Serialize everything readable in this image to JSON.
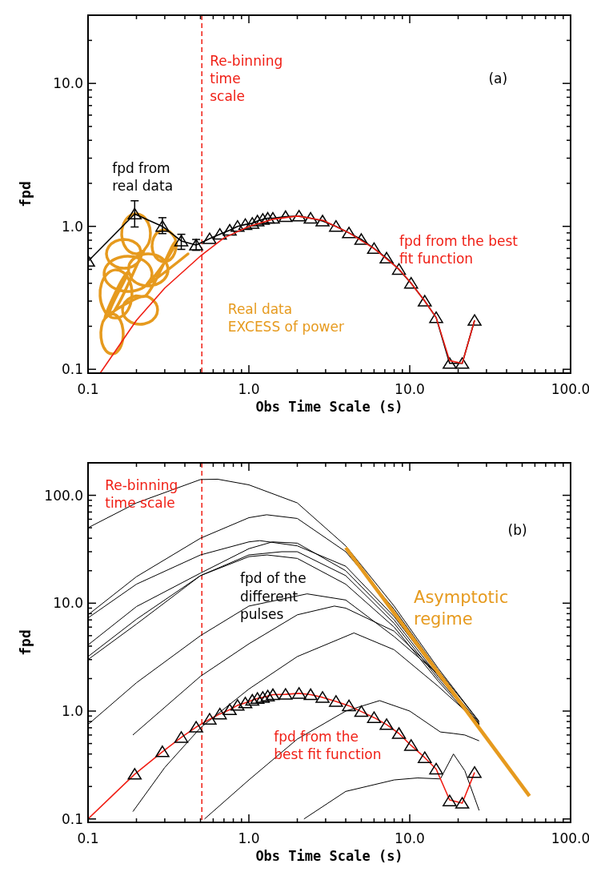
{
  "chart_data": [
    {
      "type": "line",
      "xlabel": "Obs Time Scale (s)",
      "ylabel": "fpd",
      "log": "xy",
      "grid": false,
      "xlim": [
        0.1,
        100
      ],
      "ylim": [
        0.094,
        30
      ],
      "xticks": [
        0.1,
        {
          "value": 0.2,
          "label": null
        },
        {
          "value": 0.3,
          "label": null
        },
        {
          "value": 0.4,
          "label": null
        },
        {
          "value": 0.5,
          "label": null
        },
        {
          "value": 0.6,
          "label": null
        },
        {
          "value": 0.7,
          "label": null
        },
        {
          "value": 0.8,
          "label": null
        },
        {
          "value": 0.9,
          "label": null
        },
        {
          "value": 1,
          "label": "1.0"
        },
        {
          "value": 2,
          "label": null
        },
        {
          "value": 3,
          "label": null
        },
        {
          "value": 4,
          "label": null
        },
        {
          "value": 5,
          "label": null
        },
        {
          "value": 6,
          "label": null
        },
        {
          "value": 7,
          "label": null
        },
        {
          "value": 8,
          "label": null
        },
        {
          "value": 9,
          "label": null
        },
        {
          "value": 10,
          "label": "10.0"
        },
        {
          "value": 20,
          "label": null
        },
        {
          "value": 30,
          "label": null
        },
        {
          "value": 40,
          "label": null
        },
        {
          "value": 50,
          "label": null
        },
        {
          "value": 60,
          "label": null
        },
        {
          "value": 70,
          "label": null
        },
        {
          "value": 80,
          "label": null
        },
        {
          "value": 90,
          "label": null
        },
        {
          "value": 100,
          "label": "100.0"
        }
      ],
      "yticks": [
        0.1,
        {
          "value": 0.2,
          "label": null
        },
        {
          "value": 0.3,
          "label": null
        },
        {
          "value": 0.4,
          "label": null
        },
        {
          "value": 0.5,
          "label": null
        },
        {
          "value": 0.6,
          "label": null
        },
        {
          "value": 0.7,
          "label": null
        },
        {
          "value": 0.8,
          "label": null
        },
        {
          "value": 0.9,
          "label": null
        },
        {
          "value": 1,
          "label": "1.0"
        },
        {
          "value": 2,
          "label": null
        },
        {
          "value": 3,
          "label": null
        },
        {
          "value": 4,
          "label": null
        },
        {
          "value": 5,
          "label": null
        },
        {
          "value": 6,
          "label": null
        },
        {
          "value": 7,
          "label": null
        },
        {
          "value": 8,
          "label": null
        },
        {
          "value": 9,
          "label": null
        },
        {
          "value": 10,
          "label": "10.0"
        },
        {
          "value": 20,
          "label": null
        }
      ],
      "ref_lines": [
        {
          "axis": "x",
          "value": 0.51,
          "label": "Re-binning\ntime\nscale",
          "color": "#f01e14",
          "line_style": "dashed"
        }
      ],
      "annotations": [
        "(a)",
        "fpd from\nreal data",
        "fpd from the best\nfit function",
        "Real data\nEXCESS of power"
      ],
      "series": [
        {
          "color": "#000000",
          "marker": "none",
          "x": [
            0.1,
            0.195,
            0.29,
            0.38,
            0.47,
            0.57,
            0.66,
            0.76,
            0.85,
            0.95,
            1.05,
            1.13,
            1.22,
            1.31,
            1.41,
            1.69,
            2.05,
            2.42,
            2.87,
            3.48,
            4.19,
            5.0,
            6.0,
            7.18,
            8.57,
            10.2,
            12.4,
            14.6,
            17.7,
            21.2,
            25.3
          ],
          "values": [
            0.57,
            1.22,
            1.0,
            0.79,
            0.74,
            0.82,
            0.88,
            0.94,
            1.0,
            1.03,
            1.05,
            1.09,
            1.12,
            1.14,
            1.14,
            1.17,
            1.18,
            1.14,
            1.09,
            1.0,
            0.9,
            0.81,
            0.7,
            0.6,
            0.5,
            0.4,
            0.3,
            0.23,
            0.11,
            0.11,
            0.22
          ]
        },
        {
          "type": "scatter",
          "color": "#000000",
          "marker": "triangle",
          "x": [
            0.1,
            0.195,
            0.29,
            0.38,
            0.47,
            0.57,
            0.66,
            0.76,
            0.85,
            0.95,
            1.05,
            1.13,
            1.22,
            1.31,
            1.41,
            1.69,
            2.05,
            2.42,
            2.87,
            3.48,
            4.19,
            5.0,
            6.0,
            7.18,
            8.57,
            10.2,
            12.4,
            14.6,
            17.7,
            21.2,
            25.3
          ],
          "values": [
            0.57,
            1.22,
            1.0,
            0.79,
            0.74,
            0.82,
            0.88,
            0.94,
            1.0,
            1.03,
            1.05,
            1.09,
            1.12,
            1.14,
            1.14,
            1.17,
            1.18,
            1.14,
            1.09,
            1.0,
            0.9,
            0.81,
            0.7,
            0.6,
            0.5,
            0.4,
            0.3,
            0.23,
            0.11,
            0.11,
            0.22
          ],
          "errors": [
            null,
            [
              0.99,
              1.51
            ],
            [
              0.89,
              1.15
            ],
            [
              0.69,
              0.88
            ],
            [
              0.68,
              0.81
            ],
            null,
            null,
            null,
            null,
            null,
            null,
            null,
            null,
            null,
            null,
            null,
            null,
            null,
            null,
            null,
            null,
            null,
            null,
            null,
            null,
            null,
            null,
            null,
            null,
            null,
            null
          ]
        },
        {
          "color": "#f01e14",
          "marker": "none",
          "x": [
            0.119,
            0.2,
            0.3,
            0.5,
            0.7,
            1.0,
            1.4,
            2.0,
            2.9,
            4.2,
            6.0,
            8.6,
            10.2,
            12.4,
            14.6,
            17.7,
            21.2,
            25.3
          ],
          "values": [
            0.094,
            0.22,
            0.37,
            0.62,
            0.83,
            1.0,
            1.12,
            1.18,
            1.1,
            0.9,
            0.7,
            0.5,
            0.4,
            0.3,
            0.23,
            0.115,
            0.11,
            0.22
          ]
        }
      ]
    },
    {
      "type": "line",
      "xlabel": "Obs Time Scale (s)",
      "ylabel": "fpd",
      "log": "xy",
      "grid": false,
      "xlim": [
        0.1,
        100
      ],
      "ylim": [
        0.093,
        200
      ],
      "xticks": [
        0.1,
        {
          "value": 0.2,
          "label": null
        },
        {
          "value": 0.3,
          "label": null
        },
        {
          "value": 0.4,
          "label": null
        },
        {
          "value": 0.5,
          "label": null
        },
        {
          "value": 0.6,
          "label": null
        },
        {
          "value": 0.7,
          "label": null
        },
        {
          "value": 0.8,
          "label": null
        },
        {
          "value": 0.9,
          "label": null
        },
        {
          "value": 1,
          "label": "1.0"
        },
        {
          "value": 2,
          "label": null
        },
        {
          "value": 3,
          "label": null
        },
        {
          "value": 4,
          "label": null
        },
        {
          "value": 5,
          "label": null
        },
        {
          "value": 6,
          "label": null
        },
        {
          "value": 7,
          "label": null
        },
        {
          "value": 8,
          "label": null
        },
        {
          "value": 9,
          "label": null
        },
        {
          "value": 10,
          "label": "10.0"
        },
        {
          "value": 20,
          "label": null
        },
        {
          "value": 30,
          "label": null
        },
        {
          "value": 40,
          "label": null
        },
        {
          "value": 50,
          "label": null
        },
        {
          "value": 60,
          "label": null
        },
        {
          "value": 70,
          "label": null
        },
        {
          "value": 80,
          "label": null
        },
        {
          "value": 90,
          "label": null
        },
        {
          "value": 100,
          "label": "100.0"
        }
      ],
      "yticks": [
        0.1,
        {
          "value": 0.2,
          "label": null
        },
        {
          "value": 0.3,
          "label": null
        },
        {
          "value": 0.4,
          "label": null
        },
        {
          "value": 0.5,
          "label": null
        },
        {
          "value": 0.6,
          "label": null
        },
        {
          "value": 0.7,
          "label": null
        },
        {
          "value": 0.8,
          "label": null
        },
        {
          "value": 0.9,
          "label": null
        },
        {
          "value": 1,
          "label": "1.0"
        },
        {
          "value": 2,
          "label": null
        },
        {
          "value": 3,
          "label": null
        },
        {
          "value": 4,
          "label": null
        },
        {
          "value": 5,
          "label": null
        },
        {
          "value": 6,
          "label": null
        },
        {
          "value": 7,
          "label": null
        },
        {
          "value": 8,
          "label": null
        },
        {
          "value": 9,
          "label": null
        },
        {
          "value": 10,
          "label": "10.0"
        },
        {
          "value": 20,
          "label": null
        },
        {
          "value": 30,
          "label": null
        },
        {
          "value": 40,
          "label": null
        },
        {
          "value": 50,
          "label": null
        },
        {
          "value": 60,
          "label": null
        },
        {
          "value": 70,
          "label": null
        },
        {
          "value": 80,
          "label": null
        },
        {
          "value": 90,
          "label": null
        },
        {
          "value": 100,
          "label": "100.0"
        },
        {
          "value": 200,
          "label": null
        }
      ],
      "ref_lines": [
        {
          "axis": "x",
          "value": 0.51,
          "label": "Re-binning\ntime scale",
          "color": "#f01e14",
          "line_style": "dashed"
        }
      ],
      "annotations": [
        "(b)",
        "fpd of the\ndifferent\npulses",
        "Asymptotic\nregime",
        "fpd from the\nbest fit function"
      ],
      "series": [
        {
          "color": "#000000",
          "marker": "none",
          "x": [
            0.1,
            0.2,
            0.5,
            0.64,
            1,
            2,
            4,
            8,
            15,
            27
          ],
          "values": [
            50,
            85,
            140,
            141,
            125,
            85,
            34,
            9.4,
            2.5,
            0.8
          ]
        },
        {
          "color": "#000000",
          "marker": "none",
          "x": [
            0.1,
            0.2,
            0.5,
            1,
            1.29,
            2,
            4,
            8,
            15,
            27
          ],
          "values": [
            7.8,
            17.6,
            40,
            62,
            66,
            61,
            30,
            8.8,
            2.4,
            0.8
          ]
        },
        {
          "color": "#000000",
          "marker": "none",
          "x": [
            0.1,
            0.2,
            0.5,
            1,
            1.17,
            2,
            4,
            8,
            15,
            27
          ],
          "values": [
            7.3,
            15,
            28,
            37,
            38,
            34,
            22,
            7.5,
            2.2,
            0.78
          ]
        },
        {
          "color": "#000000",
          "marker": "none",
          "x": [
            0.1,
            0.2,
            0.5,
            1,
            1.4,
            2,
            4,
            8,
            15,
            27
          ],
          "values": [
            4.1,
            9.3,
            19,
            32,
            37,
            36,
            20,
            7,
            2.1,
            0.76
          ]
        },
        {
          "color": "#000000",
          "marker": "none",
          "x": [
            0.1,
            0.2,
            0.5,
            1,
            1.6,
            2,
            4,
            8,
            15,
            27
          ],
          "values": [
            3.2,
            7.1,
            18,
            28,
            30,
            30,
            18,
            6.5,
            2.0,
            0.74
          ]
        },
        {
          "color": "#000000",
          "marker": "none",
          "x": [
            0.1,
            0.2,
            0.5,
            1,
            1.3,
            2,
            4,
            8,
            15,
            27
          ],
          "values": [
            3.0,
            6.4,
            18,
            27,
            28,
            26,
            15,
            6,
            1.9,
            0.72
          ]
        },
        {
          "color": "#000000",
          "marker": "none",
          "x": [
            0.1,
            0.2,
            0.5,
            1,
            2.3,
            4,
            8,
            15,
            27
          ],
          "values": [
            0.75,
            1.83,
            5.0,
            9.4,
            12.2,
            10.7,
            4.9,
            2.2,
            0.75
          ]
        },
        {
          "color": "#000000",
          "marker": "none",
          "x": [
            0.19,
            0.5,
            1,
            2,
            3.4,
            4,
            8,
            15,
            27
          ],
          "values": [
            0.6,
            2.1,
            4.2,
            7.8,
            9.4,
            9.0,
            5.5,
            2.2,
            0.75
          ]
        },
        {
          "color": "#000000",
          "marker": "none",
          "x": [
            0.19,
            0.3,
            0.5,
            1,
            2,
            4.5,
            8,
            15,
            27
          ],
          "values": [
            0.117,
            0.3,
            0.7,
            1.6,
            3.2,
            5.3,
            3.7,
            1.7,
            0.77
          ]
        },
        {
          "color": "#000000",
          "marker": "none",
          "x": [
            0.53,
            1,
            2,
            4,
            6.5,
            10,
            15.5,
            18.7,
            22,
            27
          ],
          "values": [
            0.1,
            0.23,
            0.55,
            1.0,
            1.25,
            1.0,
            0.64,
            0.62,
            0.6,
            0.53
          ]
        },
        {
          "color": "#000000",
          "marker": "none",
          "x": [
            2.2,
            4,
            8,
            11.2,
            15.5,
            18.7,
            22,
            27
          ],
          "values": [
            0.1,
            0.18,
            0.23,
            0.24,
            0.235,
            0.4,
            0.28,
            0.12
          ]
        },
        {
          "color": "#f01e14",
          "marker": "none",
          "x": [
            0.1,
            0.195,
            0.29,
            0.38,
            0.47,
            0.57,
            0.66,
            0.76,
            0.85,
            0.95,
            1.05,
            1.13,
            1.22,
            1.31,
            1.41,
            1.69,
            2.05,
            2.42,
            2.87,
            3.48,
            4.19,
            5.0,
            6.0,
            7.18,
            8.57,
            10.2,
            12.4,
            14.6,
            17.7,
            21.2,
            25.3
          ],
          "values": [
            0.1,
            0.26,
            0.42,
            0.57,
            0.71,
            0.84,
            0.94,
            1.03,
            1.13,
            1.19,
            1.26,
            1.31,
            1.34,
            1.38,
            1.42,
            1.43,
            1.46,
            1.42,
            1.34,
            1.23,
            1.12,
            0.99,
            0.87,
            0.75,
            0.62,
            0.48,
            0.37,
            0.29,
            0.15,
            0.14,
            0.27
          ]
        },
        {
          "type": "scatter",
          "color": "#000000",
          "marker": "triangle",
          "x": [
            0.195,
            0.29,
            0.38,
            0.47,
            0.57,
            0.66,
            0.76,
            0.85,
            0.95,
            1.05,
            1.13,
            1.22,
            1.31,
            1.41,
            1.69,
            2.05,
            2.42,
            2.87,
            3.48,
            4.19,
            5.0,
            6.0,
            7.18,
            8.57,
            10.2,
            12.4,
            14.6,
            17.7,
            21.2,
            25.3
          ],
          "values": [
            0.26,
            0.42,
            0.57,
            0.71,
            0.84,
            0.94,
            1.03,
            1.13,
            1.19,
            1.26,
            1.31,
            1.34,
            1.38,
            1.42,
            1.43,
            1.46,
            1.42,
            1.34,
            1.23,
            1.12,
            0.99,
            0.87,
            0.75,
            0.62,
            0.48,
            0.37,
            0.29,
            0.147,
            0.14,
            0.27
          ]
        },
        {
          "color": "#e69a1e",
          "marker": "none",
          "x": [
            4.0,
            55.5
          ],
          "values": [
            32.7,
            0.163
          ]
        }
      ]
    }
  ]
}
